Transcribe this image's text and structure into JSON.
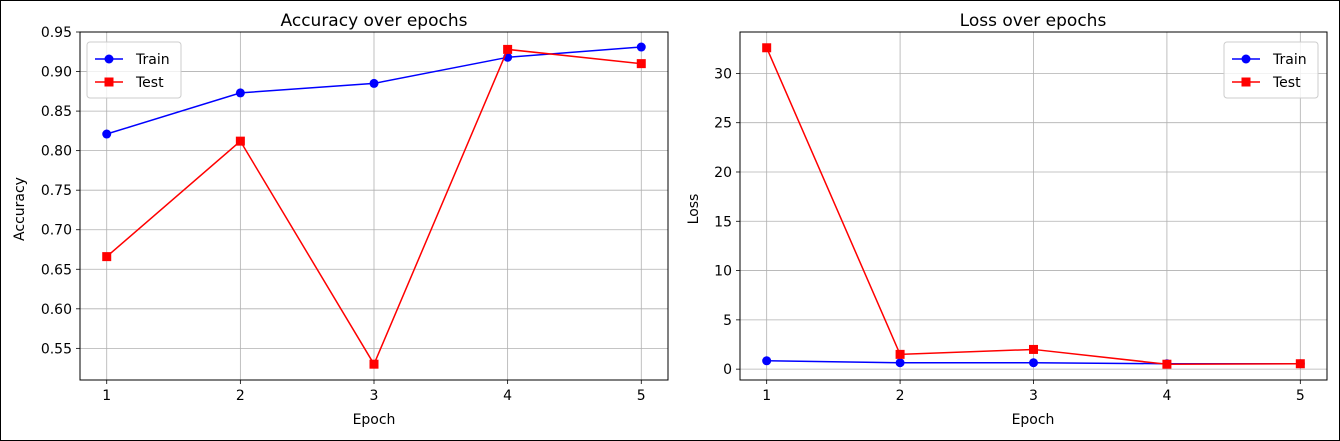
{
  "chart_data": [
    {
      "type": "line",
      "title": "Accuracy over epochs",
      "xlabel": "Epoch",
      "ylabel": "Accuracy",
      "x": [
        1,
        2,
        3,
        4,
        5
      ],
      "xticks": [
        "1",
        "2",
        "3",
        "4",
        "5"
      ],
      "xlim": [
        0.8,
        5.2
      ],
      "yticks": [
        "0.55",
        "0.60",
        "0.65",
        "0.70",
        "0.75",
        "0.80",
        "0.85",
        "0.90",
        "0.95"
      ],
      "ytick_values": [
        0.55,
        0.6,
        0.65,
        0.7,
        0.75,
        0.8,
        0.85,
        0.9,
        0.95
      ],
      "ylim": [
        0.51,
        0.95
      ],
      "grid": true,
      "legend_position": "top-left",
      "series": [
        {
          "name": "Train",
          "values": [
            0.821,
            0.873,
            0.885,
            0.918,
            0.931
          ],
          "color": "#0000ff",
          "marker": "circle"
        },
        {
          "name": "Test",
          "values": [
            0.666,
            0.812,
            0.53,
            0.928,
            0.91
          ],
          "color": "#ff0000",
          "marker": "square"
        }
      ]
    },
    {
      "type": "line",
      "title": "Loss over epochs",
      "xlabel": "Epoch",
      "ylabel": "Loss",
      "x": [
        1,
        2,
        3,
        4,
        5
      ],
      "xticks": [
        "1",
        "2",
        "3",
        "4",
        "5"
      ],
      "xlim": [
        0.8,
        5.2
      ],
      "yticks": [
        "0",
        "5",
        "10",
        "15",
        "20",
        "25",
        "30"
      ],
      "ytick_values": [
        0,
        5,
        10,
        15,
        20,
        25,
        30
      ],
      "ylim": [
        -1.1,
        34.2
      ],
      "grid": true,
      "legend_position": "top-right",
      "series": [
        {
          "name": "Train",
          "values": [
            0.85,
            0.65,
            0.65,
            0.55,
            0.55
          ],
          "color": "#0000ff",
          "marker": "circle"
        },
        {
          "name": "Test",
          "values": [
            32.6,
            1.5,
            2.0,
            0.5,
            0.55
          ],
          "color": "#ff0000",
          "marker": "square"
        }
      ]
    }
  ]
}
